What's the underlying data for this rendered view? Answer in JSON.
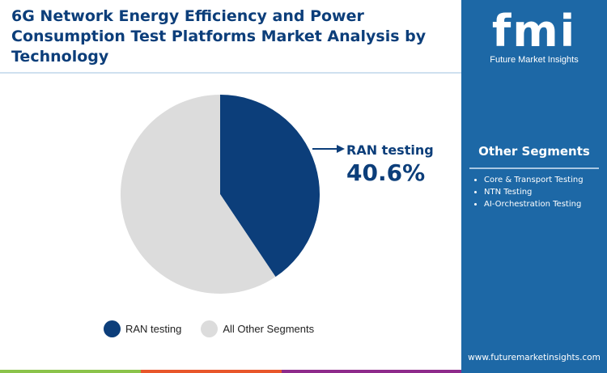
{
  "title": "6G Network Energy Efficiency and Power Consumption Test Platforms Market Analysis by Technology",
  "brand": {
    "logo": "fmi",
    "name": "Future Market Insights",
    "url": "www.futuremarketinsights.com"
  },
  "other_segments": {
    "title": "Other Segments",
    "items": [
      "Core & Transport Testing",
      "NTN Testing",
      "AI-Orchestration Testing"
    ]
  },
  "colors": {
    "primary": "#0c3e7a",
    "other": "#dcdcdc",
    "panel": "#1d68a6"
  },
  "chart_data": {
    "type": "pie",
    "categories": [
      "RAN testing",
      "All Other Segments"
    ],
    "values": [
      40.6,
      59.4
    ],
    "colors": [
      "#0c3e7a",
      "#dcdcdc"
    ],
    "callout": {
      "label": "RAN testing",
      "value": "40.6%"
    },
    "legend": "bottom"
  }
}
